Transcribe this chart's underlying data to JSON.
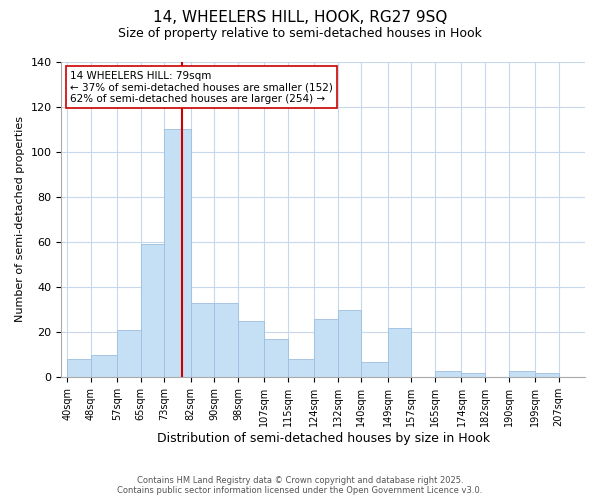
{
  "title": "14, WHEELERS HILL, HOOK, RG27 9SQ",
  "subtitle": "Size of property relative to semi-detached houses in Hook",
  "xlabel": "Distribution of semi-detached houses by size in Hook",
  "ylabel": "Number of semi-detached properties",
  "bar_color": "#c5dff5",
  "bar_edge_color": "#9dbfe0",
  "background_color": "#ffffff",
  "grid_color": "#c8d8ec",
  "bin_labels": [
    "40sqm",
    "48sqm",
    "57sqm",
    "65sqm",
    "73sqm",
    "82sqm",
    "90sqm",
    "98sqm",
    "107sqm",
    "115sqm",
    "124sqm",
    "132sqm",
    "140sqm",
    "149sqm",
    "157sqm",
    "165sqm",
    "174sqm",
    "182sqm",
    "190sqm",
    "199sqm",
    "207sqm"
  ],
  "bin_edges": [
    40,
    48,
    57,
    65,
    73,
    82,
    90,
    98,
    107,
    115,
    124,
    132,
    140,
    149,
    157,
    165,
    174,
    182,
    190,
    199,
    207
  ],
  "bar_heights": [
    8,
    10,
    21,
    59,
    110,
    33,
    33,
    25,
    17,
    8,
    26,
    30,
    7,
    22,
    0,
    3,
    2,
    0,
    3,
    2,
    0
  ],
  "property_size": 79,
  "property_line_color": "#cc0000",
  "annotation_line1": "14 WHEELERS HILL: 79sqm",
  "annotation_line2": "← 37% of semi-detached houses are smaller (152)",
  "annotation_line3": "62% of semi-detached houses are larger (254) →",
  "annotation_box_color": "#ffffff",
  "annotation_box_edge": "#cc0000",
  "ylim": [
    0,
    140
  ],
  "yticks": [
    0,
    20,
    40,
    60,
    80,
    100,
    120,
    140
  ],
  "footnote1": "Contains HM Land Registry data © Crown copyright and database right 2025.",
  "footnote2": "Contains public sector information licensed under the Open Government Licence v3.0."
}
